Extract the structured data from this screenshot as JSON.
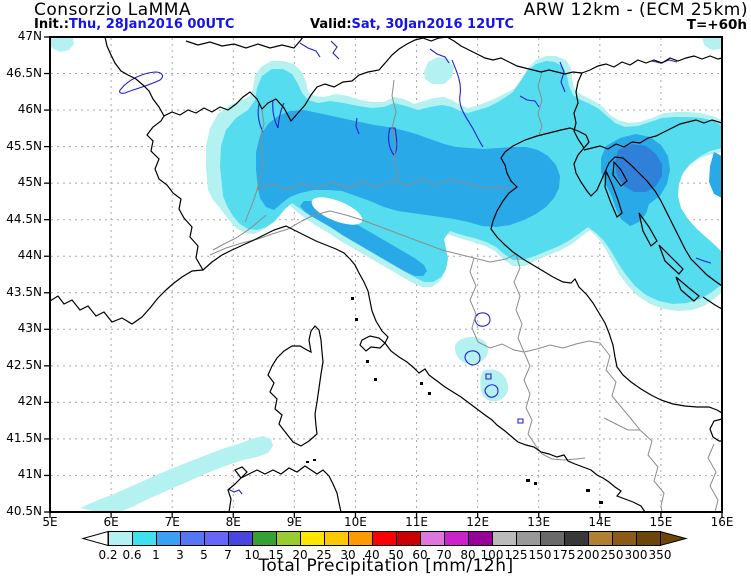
{
  "header": {
    "title": "Consorzio LaMMA",
    "model": "ARW 12km - (ECM 25km)",
    "init_label": "Init.:",
    "init_value": "Thu, 28Jan2016 00UTC",
    "valid_label": "Valid:",
    "valid_value": "Sat, 30Jan2016 12UTC",
    "lead_time": "T=+60h",
    "accent_blue": "#1414E8"
  },
  "map": {
    "lat_labels": [
      "47N",
      "46.5N",
      "46N",
      "45.5N",
      "45N",
      "44.5N",
      "44N",
      "43.5N",
      "43N",
      "42.5N",
      "42N",
      "41.5N",
      "41N",
      "40.5N"
    ],
    "lon_labels": [
      "5E",
      "6E",
      "7E",
      "8E",
      "9E",
      "10E",
      "11E",
      "12E",
      "13E",
      "14E",
      "15E",
      "16E"
    ],
    "precip_levels_shown_mm": [
      0.2,
      0.6,
      1,
      3
    ],
    "precip_colors_shown": [
      "#B4F1F1",
      "#55DCEE",
      "#2AA9E8",
      "#2F80D8"
    ]
  },
  "colorbar": {
    "values": [
      "0.2",
      "0.6",
      "1",
      "3",
      "5",
      "7",
      "10",
      "15",
      "20",
      "25",
      "30",
      "40",
      "50",
      "60",
      "70",
      "80",
      "100",
      "125",
      "150",
      "175",
      "200",
      "250",
      "300",
      "350"
    ],
    "colors": [
      "#B2F2F2",
      "#3FE0F0",
      "#3A9FF5",
      "#5577F5",
      "#6666FA",
      "#4747E0",
      "#33A233",
      "#99CC33",
      "#FFE500",
      "#FFC800",
      "#FF9900",
      "#FF0000",
      "#CC0000",
      "#DD77DD",
      "#CC22CC",
      "#990099",
      "#BBBBBB",
      "#999999",
      "#696969",
      "#383838",
      "#B08030",
      "#8B5A15",
      "#6E4508"
    ],
    "underflow_color": "#FFFFFF",
    "overflow_color": "#6E4508",
    "caption": "Total Precipitation [mm/12h]"
  }
}
